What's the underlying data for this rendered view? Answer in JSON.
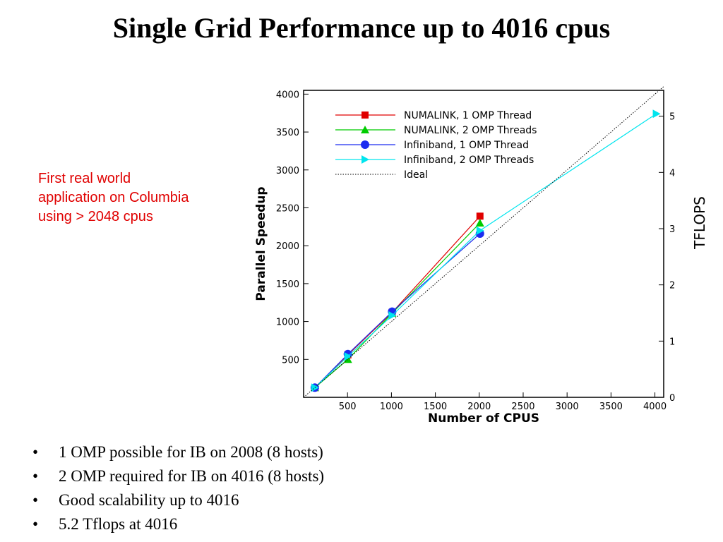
{
  "title": "Single Grid Performance up to 4016 cpus",
  "note": [
    "First real world",
    "application on Columbia",
    "using > 2048 cpus"
  ],
  "bullets": [
    "1 OMP possible for IB on 2008 (8 hosts)",
    "2 OMP required for IB on 4016 (8 hosts)",
    "Good scalability up to 4016",
    "5.2 Tflops at 4016"
  ],
  "chart_data": {
    "type": "line",
    "xlabel": "Number of CPUS",
    "ylabel": "Parallel Speedup",
    "y2label": "TFLOPS",
    "xlim": [
      0,
      4100
    ],
    "ylim": [
      0,
      4050
    ],
    "y2lim": [
      0,
      5.46
    ],
    "xticks": [
      500,
      1000,
      1500,
      2000,
      2500,
      3000,
      3500,
      4000
    ],
    "yticks": [
      500,
      1000,
      1500,
      2000,
      2500,
      3000,
      3500,
      4000
    ],
    "y2ticks": [
      0,
      1,
      2,
      3,
      4,
      5
    ],
    "legend_position": "top-left",
    "series": [
      {
        "name": "NUMALINK, 1 OMP Thread",
        "color": "#e00000",
        "marker": "square",
        "x": [
          128,
          504,
          1008,
          2008
        ],
        "y": [
          128,
          560,
          1120,
          2390
        ]
      },
      {
        "name": "NUMALINK, 2 OMP Threads",
        "color": "#00cc00",
        "marker": "triangle",
        "x": [
          128,
          504,
          1008,
          2008
        ],
        "y": [
          128,
          500,
          1110,
          2300
        ]
      },
      {
        "name": "Infiniband, 1 OMP Thread",
        "color": "#1c2cf0",
        "marker": "circle",
        "x": [
          128,
          504,
          1008,
          2008
        ],
        "y": [
          128,
          570,
          1130,
          2160
        ]
      },
      {
        "name": "Infiniband, 2 OMP Threads",
        "color": "#00e5ee",
        "marker": "right-triangle",
        "x": [
          128,
          504,
          1008,
          2008,
          4016
        ],
        "y": [
          128,
          540,
          1080,
          2200,
          3740
        ]
      },
      {
        "name": "Ideal",
        "color": "#000000",
        "marker": "none",
        "dotted": true,
        "x": [
          0,
          4100
        ],
        "y": [
          0,
          4100
        ]
      }
    ]
  }
}
